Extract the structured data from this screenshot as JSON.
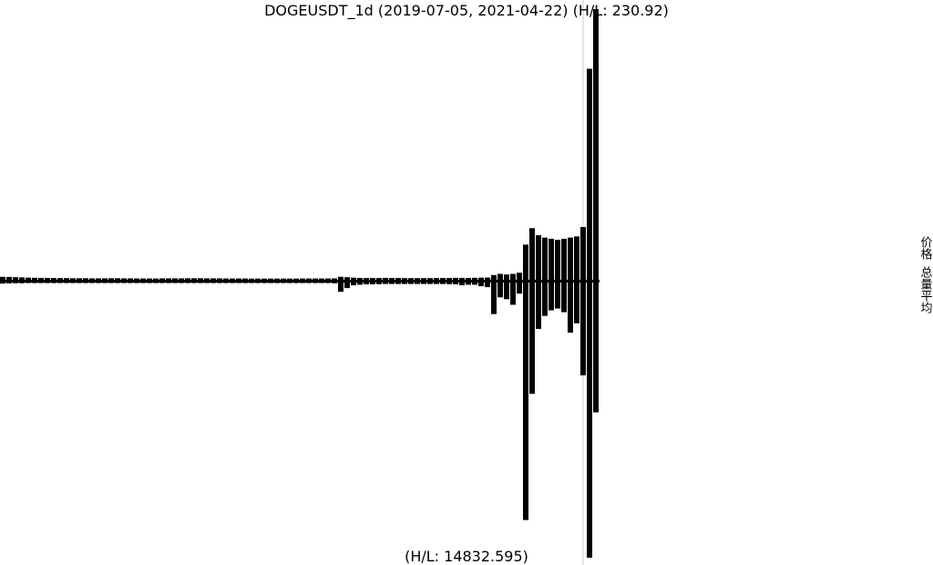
{
  "chart_data": {
    "type": "bar",
    "title": "DOGEUSDT_1d (2019-07-05, 2021-04-22) (H/L: 230.92)",
    "subtitle": "(H/L: 14832.595)",
    "side_labels": [
      "价格",
      "总量平均"
    ],
    "ylim": [
      0,
      230.92
    ],
    "y2lim": [
      0,
      14832.595
    ],
    "series": [
      {
        "name": "价格",
        "color": "#000000",
        "values": [
          2.5,
          2.4,
          2.2,
          2,
          1.8,
          1.7,
          1.6,
          1.5,
          1.5,
          1.4,
          1.4,
          1.3,
          1.3,
          1.3,
          1.2,
          1.2,
          1.2,
          1.3,
          1.3,
          1.2,
          1.2,
          1.1,
          1.1,
          1.1,
          1.1,
          1.2,
          1.2,
          1.2,
          1.2,
          1.3,
          1.3,
          1.3,
          1.2,
          1.2,
          1.2,
          1.1,
          1.1,
          1.1,
          1.1,
          1,
          1,
          1,
          1,
          1,
          1,
          1,
          1,
          1.1,
          1.1,
          1.1,
          1.1,
          1.1,
          1.2,
          2.5,
          2.2,
          1.8,
          1.6,
          1.5,
          1.5,
          1.5,
          1.6,
          1.5,
          1.5,
          1.4,
          1.4,
          1.4,
          1.4,
          1.4,
          1.5,
          1.5,
          1.5,
          1.6,
          1.6,
          1.6,
          1.7,
          1.8,
          1.9,
          4,
          5,
          4.5,
          5,
          6,
          30,
          44,
          38,
          36,
          35,
          34,
          35,
          36,
          37,
          45,
          180,
          230.92
        ]
      },
      {
        "name": "总量平均",
        "color": "#000000",
        "axis": "y2",
        "values": [
          60,
          50,
          40,
          40,
          30,
          30,
          30,
          30,
          30,
          30,
          30,
          30,
          30,
          30,
          30,
          30,
          30,
          30,
          30,
          30,
          30,
          30,
          30,
          30,
          30,
          30,
          30,
          30,
          30,
          30,
          30,
          30,
          30,
          30,
          30,
          30,
          30,
          30,
          30,
          30,
          30,
          30,
          30,
          30,
          30,
          30,
          30,
          30,
          30,
          30,
          30,
          30,
          40,
          500,
          300,
          150,
          120,
          100,
          100,
          90,
          80,
          80,
          80,
          80,
          80,
          80,
          80,
          80,
          80,
          80,
          90,
          100,
          150,
          120,
          120,
          200,
          250,
          1700,
          800,
          900,
          1200,
          600,
          12800,
          6000,
          2500,
          1800,
          1500,
          1400,
          1600,
          2700,
          2200,
          5000,
          14832.595,
          7000
        ]
      }
    ]
  }
}
